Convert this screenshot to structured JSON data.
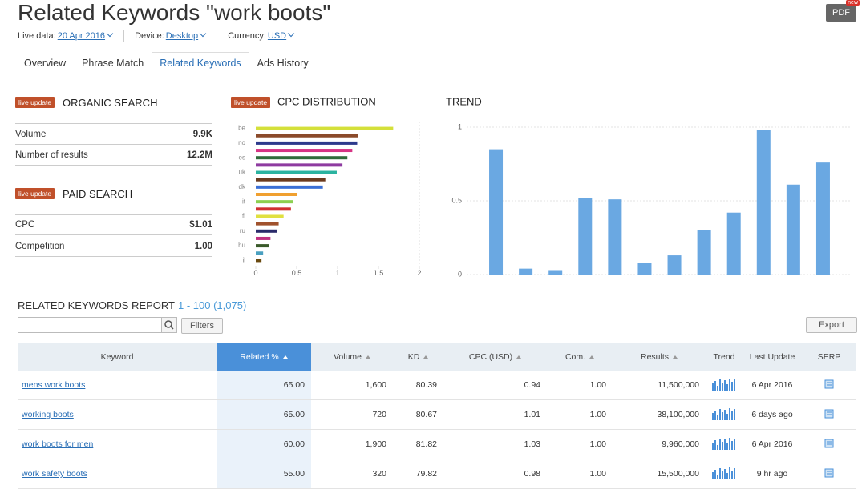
{
  "header": {
    "title": "Related Keywords \"work boots\"",
    "pdf": "PDF",
    "badge": "new",
    "live_data_label": "Live data:",
    "live_data": "20 Apr 2016",
    "device_label": "Device:",
    "device": "Desktop",
    "currency_label": "Currency:",
    "currency": "USD"
  },
  "tabs": [
    "Overview",
    "Phrase Match",
    "Related Keywords",
    "Ads History"
  ],
  "organic": {
    "badge": "live update",
    "title": "ORGANIC SEARCH",
    "rows": [
      [
        "Volume",
        "9.9K"
      ],
      [
        "Number of results",
        "12.2M"
      ]
    ]
  },
  "paid": {
    "badge": "live update",
    "title": "PAID SEARCH",
    "rows": [
      [
        "CPC",
        "$1.01"
      ],
      [
        "Competition",
        "1.00"
      ]
    ]
  },
  "cpc_badge": "live update",
  "chart_data": [
    {
      "type": "bar",
      "orientation": "horizontal",
      "title": "CPC DISTRIBUTION",
      "categories": [
        "be",
        null,
        "no",
        null,
        "es",
        null,
        "uk",
        null,
        "dk",
        null,
        "it",
        null,
        "fi",
        null,
        "ru",
        null,
        "hu",
        null,
        "il"
      ],
      "values": [
        1.68,
        1.25,
        1.24,
        1.18,
        1.12,
        1.06,
        0.99,
        0.85,
        0.82,
        0.5,
        0.46,
        0.43,
        0.34,
        0.28,
        0.26,
        0.18,
        0.16,
        0.09,
        0.07
      ],
      "colors": [
        "#d4e03a",
        "#8b4a2b",
        "#2d3a8c",
        "#d63384",
        "#2e6b3a",
        "#8e3ba0",
        "#2bb3a0",
        "#6b3a1e",
        "#3a6fd6",
        "#f0a030",
        "#8cd050",
        "#d03030",
        "#e0e040",
        "#a0522d",
        "#2a2a6a",
        "#c03080",
        "#3a5a2a",
        "#4aa0c0",
        "#6a4a10"
      ],
      "xlim": [
        0,
        2
      ],
      "xticks": [
        0,
        0.5,
        1,
        1.5,
        2
      ]
    },
    {
      "type": "bar",
      "title": "TREND",
      "values": [
        0.85,
        0.04,
        0.03,
        0.52,
        0.51,
        0.08,
        0.13,
        0.3,
        0.42,
        0.98,
        0.61,
        0.76
      ],
      "color": "#6aa8e2",
      "ylim": [
        0,
        1
      ],
      "yticks": [
        0,
        0.5,
        1
      ],
      "grid": true
    }
  ],
  "report": {
    "title": "RELATED KEYWORDS REPORT",
    "range": "1 - 100 (1,075)",
    "filters": "Filters",
    "export": "Export",
    "columns": [
      "Keyword",
      "Related %",
      "Volume",
      "KD",
      "CPC (USD)",
      "Com.",
      "Results",
      "Trend",
      "Last Update",
      "SERP"
    ],
    "rows": [
      [
        "mens work boots",
        "65.00",
        "1,600",
        "80.39",
        "0.94",
        "1.00",
        "11,500,000",
        "6 Apr 2016"
      ],
      [
        "working boots",
        "65.00",
        "720",
        "80.67",
        "1.01",
        "1.00",
        "38,100,000",
        "6 days ago"
      ],
      [
        "work boots for men",
        "60.00",
        "1,900",
        "81.82",
        "1.03",
        "1.00",
        "9,960,000",
        "6 Apr 2016"
      ],
      [
        "work safety boots",
        "55.00",
        "320",
        "79.82",
        "0.98",
        "1.00",
        "15,500,000",
        "9 hr ago"
      ]
    ]
  }
}
